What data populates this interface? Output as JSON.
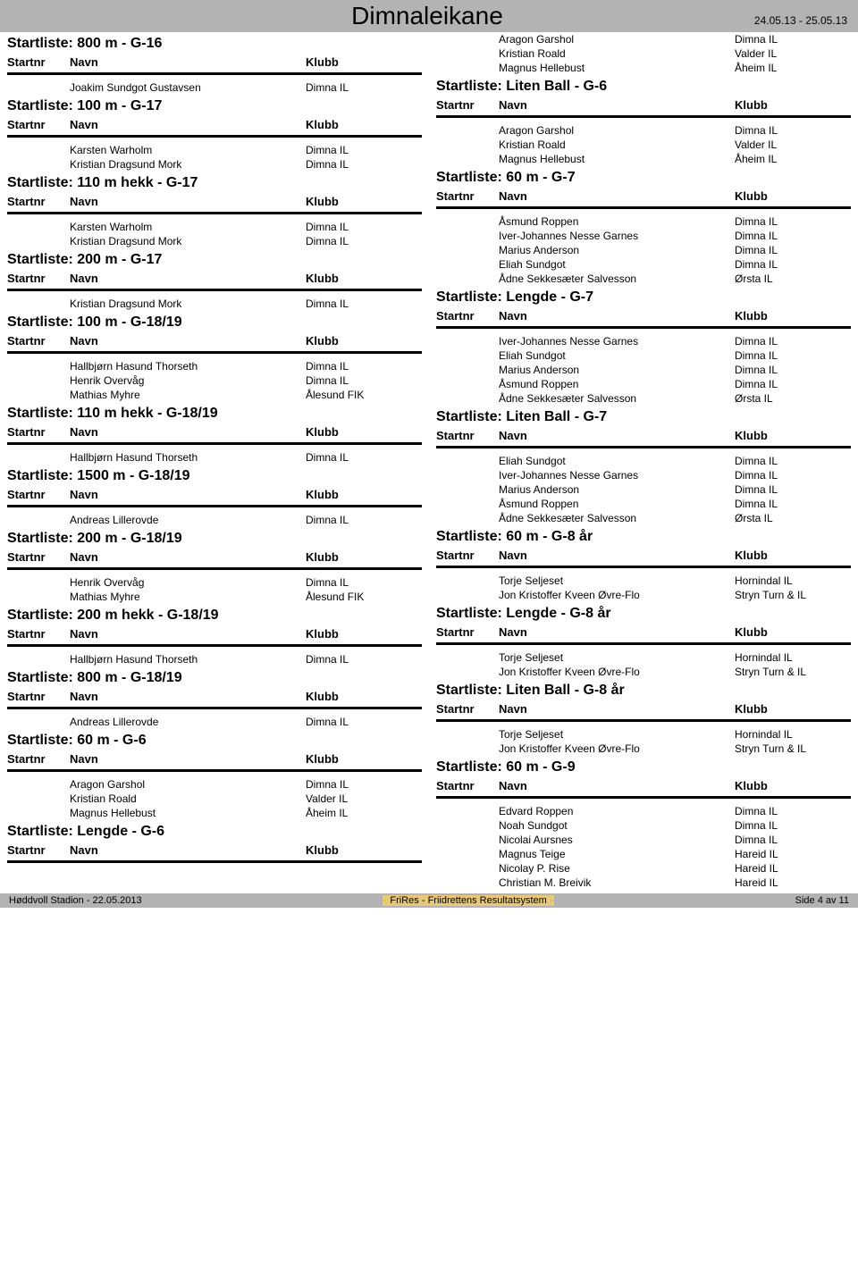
{
  "colors": {
    "title_bar_bg": "#b3b3b3",
    "footer_bg": "#b3b3b3",
    "footer_center_bg": "#e6c878",
    "text": "#000000",
    "divider": "#000000",
    "page_bg": "#ffffff"
  },
  "typography": {
    "main_title_size": 28,
    "section_title_size": 16,
    "header_size": 13,
    "entry_size": 12,
    "footer_size": 11,
    "date_size": 12
  },
  "header": {
    "title": "Dimnaleikane",
    "date_range": "24.05.13 - 25.05.13"
  },
  "labels": {
    "startnr": "Startnr",
    "navn": "Navn",
    "klubb": "Klubb"
  },
  "left_sections": [
    {
      "title": "Startliste: 800 m - G-16",
      "entries": [
        {
          "navn": "Joakim Sundgot Gustavsen",
          "klubb": "Dimna IL"
        }
      ]
    },
    {
      "title": "Startliste: 100 m - G-17",
      "entries": [
        {
          "navn": "Karsten Warholm",
          "klubb": "Dimna IL"
        },
        {
          "navn": "Kristian Dragsund Mork",
          "klubb": "Dimna IL"
        }
      ]
    },
    {
      "title": "Startliste: 110 m hekk - G-17",
      "entries": [
        {
          "navn": "Karsten Warholm",
          "klubb": "Dimna IL"
        },
        {
          "navn": "Kristian Dragsund Mork",
          "klubb": "Dimna IL"
        }
      ]
    },
    {
      "title": "Startliste: 200 m - G-17",
      "entries": [
        {
          "navn": "Kristian Dragsund Mork",
          "klubb": "Dimna IL"
        }
      ]
    },
    {
      "title": "Startliste: 100 m - G-18/19",
      "entries": [
        {
          "navn": "Hallbjørn Hasund Thorseth",
          "klubb": "Dimna IL"
        },
        {
          "navn": "Henrik Overvåg",
          "klubb": "Dimna IL"
        },
        {
          "navn": "Mathias Myhre",
          "klubb": "Ålesund FIK"
        }
      ]
    },
    {
      "title": "Startliste: 110 m hekk - G-18/19",
      "entries": [
        {
          "navn": "Hallbjørn Hasund Thorseth",
          "klubb": "Dimna IL"
        }
      ]
    },
    {
      "title": "Startliste: 1500 m - G-18/19",
      "entries": [
        {
          "navn": "Andreas Lillerovde",
          "klubb": "Dimna IL"
        }
      ]
    },
    {
      "title": "Startliste: 200 m - G-18/19",
      "entries": [
        {
          "navn": "Henrik Overvåg",
          "klubb": "Dimna IL"
        },
        {
          "navn": "Mathias Myhre",
          "klubb": "Ålesund FIK"
        }
      ]
    },
    {
      "title": "Startliste: 200 m hekk - G-18/19",
      "entries": [
        {
          "navn": "Hallbjørn Hasund Thorseth",
          "klubb": "Dimna IL"
        }
      ]
    },
    {
      "title": "Startliste: 800 m - G-18/19",
      "entries": [
        {
          "navn": "Andreas Lillerovde",
          "klubb": "Dimna IL"
        }
      ]
    },
    {
      "title": "Startliste: 60 m - G-6",
      "entries": [
        {
          "navn": "Aragon Garshol",
          "klubb": "Dimna IL"
        },
        {
          "navn": "Kristian Roald",
          "klubb": "Valder IL"
        },
        {
          "navn": "Magnus Hellebust",
          "klubb": "Åheim IL"
        }
      ]
    },
    {
      "title": "Startliste: Lengde - G-6",
      "no_entries": true
    }
  ],
  "right_pre_entries": [
    {
      "navn": "Aragon Garshol",
      "klubb": "Dimna IL"
    },
    {
      "navn": "Kristian Roald",
      "klubb": "Valder IL"
    },
    {
      "navn": "Magnus Hellebust",
      "klubb": "Åheim IL"
    }
  ],
  "right_sections": [
    {
      "title": "Startliste: Liten Ball - G-6",
      "entries": [
        {
          "navn": "Aragon Garshol",
          "klubb": "Dimna IL"
        },
        {
          "navn": "Kristian Roald",
          "klubb": "Valder IL"
        },
        {
          "navn": "Magnus Hellebust",
          "klubb": "Åheim IL"
        }
      ]
    },
    {
      "title": "Startliste: 60 m - G-7",
      "entries": [
        {
          "navn": "Åsmund Roppen",
          "klubb": "Dimna IL"
        },
        {
          "navn": "Iver-Johannes Nesse Garnes",
          "klubb": "Dimna IL"
        },
        {
          "navn": "Marius Anderson",
          "klubb": "Dimna IL"
        },
        {
          "navn": "Eliah Sundgot",
          "klubb": "Dimna IL"
        },
        {
          "navn": "Ådne Sekkesæter Salvesson",
          "klubb": "Ørsta IL"
        }
      ]
    },
    {
      "title": "Startliste: Lengde - G-7",
      "entries": [
        {
          "navn": "Iver-Johannes Nesse Garnes",
          "klubb": "Dimna IL"
        },
        {
          "navn": "Eliah Sundgot",
          "klubb": "Dimna IL"
        },
        {
          "navn": "Marius Anderson",
          "klubb": "Dimna IL"
        },
        {
          "navn": "Åsmund Roppen",
          "klubb": "Dimna IL"
        },
        {
          "navn": "Ådne Sekkesæter Salvesson",
          "klubb": "Ørsta IL"
        }
      ]
    },
    {
      "title": "Startliste: Liten Ball - G-7",
      "entries": [
        {
          "navn": "Eliah Sundgot",
          "klubb": "Dimna IL"
        },
        {
          "navn": "Iver-Johannes Nesse Garnes",
          "klubb": "Dimna IL"
        },
        {
          "navn": "Marius Anderson",
          "klubb": "Dimna IL"
        },
        {
          "navn": "Åsmund Roppen",
          "klubb": "Dimna IL"
        },
        {
          "navn": "Ådne Sekkesæter Salvesson",
          "klubb": "Ørsta IL"
        }
      ]
    },
    {
      "title": "Startliste: 60 m - G-8 år",
      "entries": [
        {
          "navn": "Torje Seljeset",
          "klubb": "Hornindal IL"
        },
        {
          "navn": "Jon Kristoffer Kveen Øvre-Flo",
          "klubb": "Stryn Turn & IL"
        }
      ]
    },
    {
      "title": "Startliste: Lengde - G-8 år",
      "entries": [
        {
          "navn": "Torje Seljeset",
          "klubb": "Hornindal IL"
        },
        {
          "navn": "Jon Kristoffer Kveen Øvre-Flo",
          "klubb": "Stryn Turn & IL"
        }
      ]
    },
    {
      "title": "Startliste: Liten Ball - G-8 år",
      "entries": [
        {
          "navn": "Torje Seljeset",
          "klubb": "Hornindal IL"
        },
        {
          "navn": "Jon Kristoffer Kveen Øvre-Flo",
          "klubb": "Stryn Turn & IL"
        }
      ]
    },
    {
      "title": "Startliste: 60 m - G-9",
      "entries": [
        {
          "navn": "Edvard Roppen",
          "klubb": "Dimna IL"
        },
        {
          "navn": "Noah Sundgot",
          "klubb": "Dimna IL"
        },
        {
          "navn": "Nicolai Aursnes",
          "klubb": "Dimna IL"
        },
        {
          "navn": "Magnus Teige",
          "klubb": "Hareid IL"
        },
        {
          "navn": "Nicolay P. Rise",
          "klubb": "Hareid IL"
        },
        {
          "navn": "Christian M. Breivik",
          "klubb": "Hareid IL"
        }
      ]
    }
  ],
  "footer": {
    "left": "Høddvoll Stadion - 22.05.2013",
    "center": "FriRes - Friidrettens Resultatsystem",
    "right": "Side 4 av 11"
  }
}
